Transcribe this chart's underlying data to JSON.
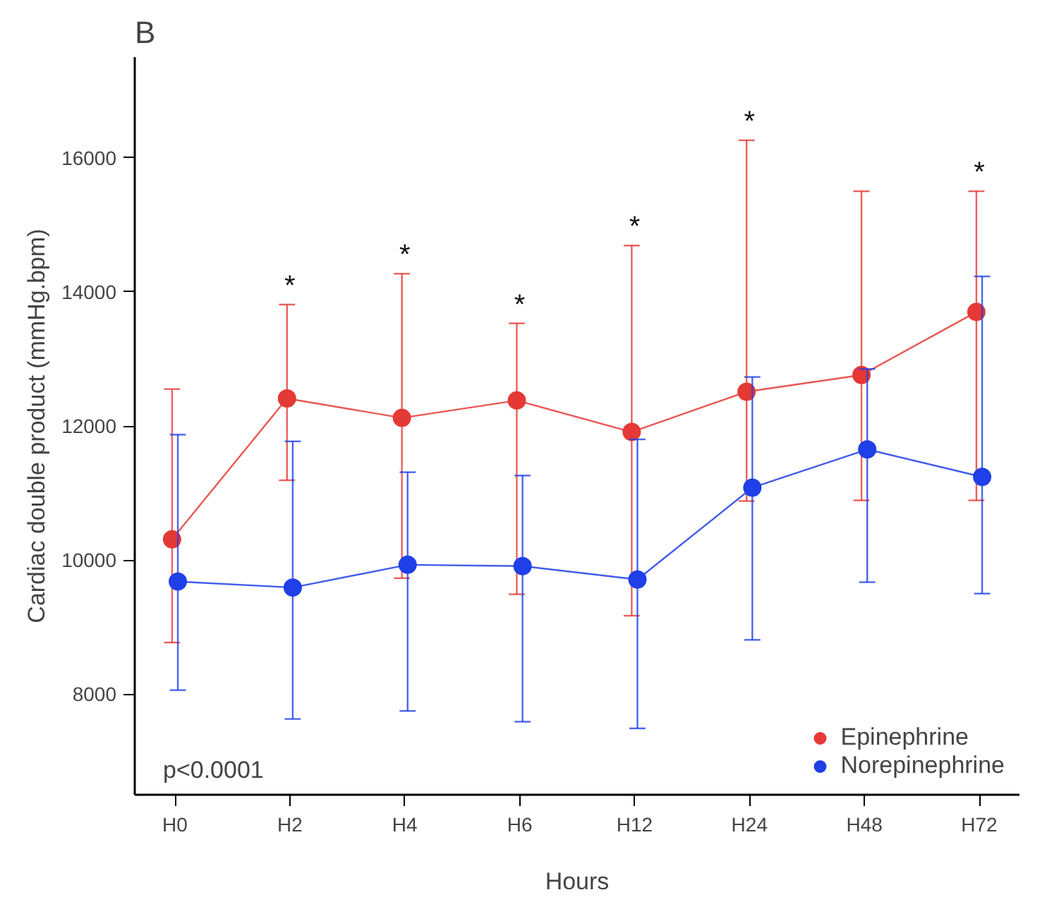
{
  "chart_data": {
    "type": "line",
    "title": "B",
    "xlabel": "Hours",
    "ylabel": "Cardiac double product (mmHg.bpm)",
    "categories": [
      "H0",
      "H2",
      "H4",
      "H6",
      "H12",
      "H24",
      "H48",
      "H72"
    ],
    "series": [
      {
        "name": "Epinephrine",
        "color": "#e53935",
        "values": [
          10310,
          12410,
          12120,
          12380,
          11910,
          12510,
          12760,
          13700
        ],
        "errors": [
          [
            8770,
            12550
          ],
          [
            11190,
            13810
          ],
          [
            9730,
            14270
          ],
          [
            9490,
            13530
          ],
          [
            9170,
            14690
          ],
          [
            10880,
            16260
          ],
          [
            10890,
            15500
          ],
          [
            10890,
            15500
          ]
        ]
      },
      {
        "name": "Norepinephrine",
        "color": "#1f3fe8",
        "values": [
          9680,
          9590,
          9930,
          9910,
          9710,
          11080,
          11650,
          11240
        ],
        "errors": [
          [
            8060,
            11870
          ],
          [
            7630,
            11770
          ],
          [
            7750,
            11310
          ],
          [
            7590,
            11260
          ],
          [
            7490,
            11800
          ],
          [
            8810,
            12730
          ],
          [
            9670,
            12850
          ],
          [
            9500,
            14230
          ]
        ]
      }
    ],
    "ylim": [
      6500,
      17500
    ],
    "yticks": [
      8000,
      10000,
      12000,
      14000,
      16000
    ],
    "grid": false,
    "legend": "bottom right",
    "marker": "circle",
    "line_style": "solid",
    "annotations": [
      {
        "text": "*",
        "x": "H2",
        "y": 13810
      },
      {
        "text": "*",
        "x": "H4",
        "y": 14270
      },
      {
        "text": "*",
        "x": "H6",
        "y": 13530
      },
      {
        "text": "*",
        "x": "H12",
        "y": 14690
      },
      {
        "text": "*",
        "x": "H24",
        "y": 16260
      },
      {
        "text": "*",
        "x": "H72",
        "y": 15500
      },
      "p<0.0001"
    ]
  }
}
